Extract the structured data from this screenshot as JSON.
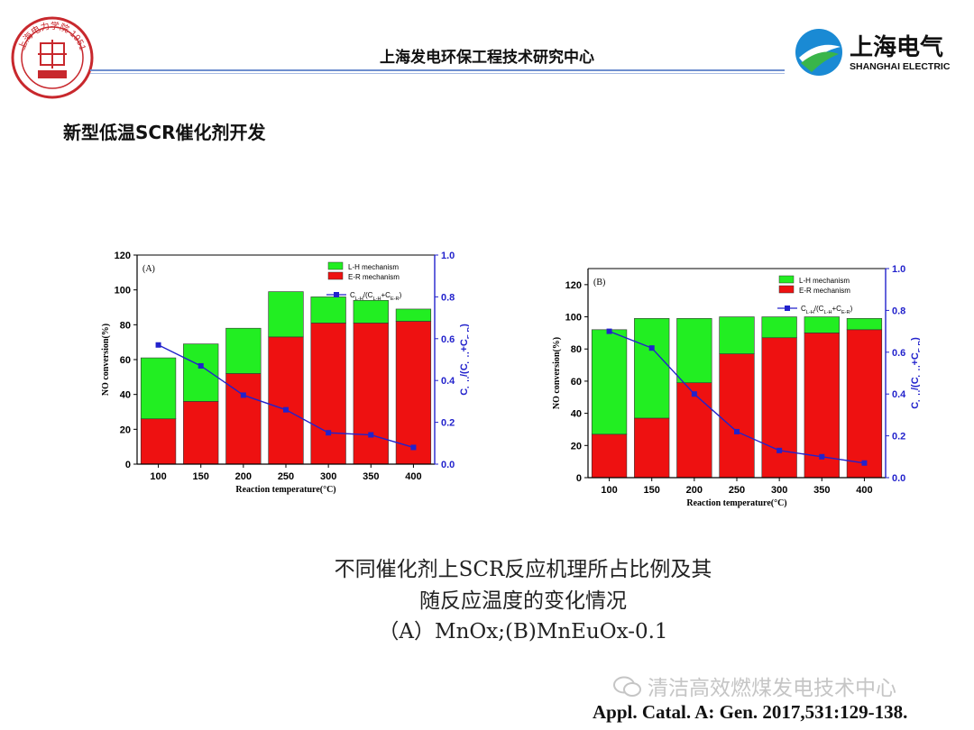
{
  "header": {
    "title": "上海发电环保工程技术研究中心",
    "left_logo": {
      "icon": "university-seal-icon",
      "color": "#c8282d",
      "seal_text": "上海电力学院 1951"
    },
    "right_logo": {
      "icon": "shanghai-electric-logo-icon",
      "name_cn": "上海电气",
      "name_en": "SHANGHAI ELECTRIC",
      "colors": [
        "#1a8ad4",
        "#39b54a"
      ]
    }
  },
  "slide_title": "新型低温SCR催化剂开发",
  "caption": {
    "line1": "不同催化剂上SCR反应机理所占比例及其",
    "line2": "随反应温度的变化情况",
    "line3": "（A）MnOx;(B)MnEuOx-0.1"
  },
  "watermark": {
    "text": "清洁高效燃煤发电技术中心",
    "icon": "wechat-icon"
  },
  "citation": "Appl. Catal. A: Gen. 2017,531:129-138.",
  "colors": {
    "lh": "#22ee22",
    "er": "#ee1111",
    "line": "#2222cc",
    "right_axis": "#2222cc"
  },
  "chart_data": [
    {
      "type": "bar",
      "panel_label": "(A)",
      "categories": [
        "100",
        "150",
        "200",
        "250",
        "300",
        "350",
        "400"
      ],
      "xlabel": "Reaction temperature(°C)",
      "ylabel": "NO conversion(%)",
      "y2label": "C_L-H/(C_L-H+C_E-R)",
      "ylim": [
        0,
        120
      ],
      "y2lim": [
        0,
        1.0
      ],
      "yticks": [
        "0",
        "20",
        "40",
        "60",
        "80",
        "100",
        "120"
      ],
      "y2ticks": [
        "0.0",
        "0.2",
        "0.4",
        "0.6",
        "0.8",
        "1.0"
      ],
      "legend_position": "top-right",
      "series": [
        {
          "name": "L-H mechanism",
          "values": [
            35,
            33,
            26,
            26,
            15,
            13,
            7
          ]
        },
        {
          "name": "E-R mechanism",
          "values": [
            26,
            36,
            52,
            73,
            81,
            81,
            82
          ]
        },
        {
          "name": "C_L-H/(C_L-H+C_E-R)",
          "axis": "right",
          "values": [
            0.57,
            0.47,
            0.33,
            0.26,
            0.15,
            0.14,
            0.08
          ]
        }
      ]
    },
    {
      "type": "bar",
      "panel_label": "(B)",
      "categories": [
        "100",
        "150",
        "200",
        "250",
        "300",
        "350",
        "400"
      ],
      "xlabel": "Reaction temperature(°C)",
      "ylabel": "NO conversion(%)",
      "y2label": "C_L-H/(C_L-H+C_E-R)",
      "ylim": [
        0,
        130
      ],
      "y2lim": [
        0,
        1.0
      ],
      "yticks": [
        "0",
        "20",
        "40",
        "60",
        "80",
        "100",
        "120"
      ],
      "y2ticks": [
        "0.0",
        "0.2",
        "0.4",
        "0.6",
        "0.8",
        "1.0"
      ],
      "legend_position": "top-right",
      "series": [
        {
          "name": "L-H mechanism",
          "values": [
            65,
            62,
            40,
            23,
            13,
            10,
            7
          ]
        },
        {
          "name": "E-R mechanism",
          "values": [
            27,
            37,
            59,
            77,
            87,
            90,
            92
          ]
        },
        {
          "name": "C_L-H/(C_L-H+C_E-R)",
          "axis": "right",
          "values": [
            0.7,
            0.62,
            0.4,
            0.22,
            0.13,
            0.1,
            0.07
          ]
        }
      ]
    }
  ]
}
